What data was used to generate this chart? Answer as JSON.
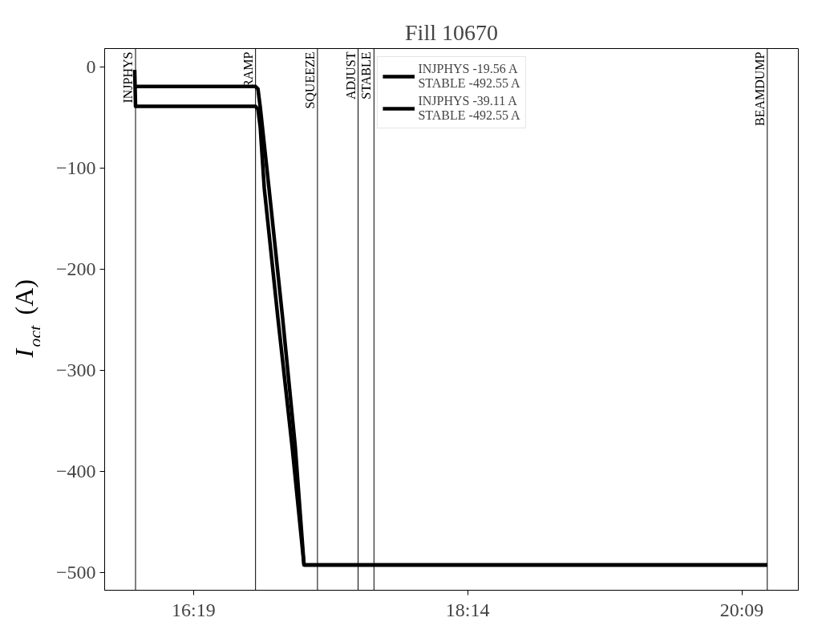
{
  "chart_data": {
    "type": "line",
    "title": "Fill 10670",
    "ylabel": "I$_{oct}$ (A)",
    "xlim": [
      15.695,
      20.545
    ],
    "ylim": [
      -517.6,
      18
    ],
    "xticks": [
      {
        "value": 16.3167,
        "label": "16:19"
      },
      {
        "value": 18.2333,
        "label": "18:14"
      },
      {
        "value": 20.15,
        "label": "20:09"
      }
    ],
    "yticks": [
      -500,
      -400,
      -300,
      -200,
      -100,
      0
    ],
    "series": [
      {
        "name": "INJPHYS -19.56 A\nSTABLE -492.55 A",
        "color": "#000000",
        "x": [
          15.913,
          16.75,
          16.767,
          16.783,
          16.844,
          16.939,
          17.028,
          17.089,
          20.328
        ],
        "values": [
          -19.56,
          -19.56,
          -22,
          -40,
          -120,
          -248,
          -376,
          -492.55,
          -492.55
        ]
      },
      {
        "name": "INJPHYS -39.11 A\nSTABLE -492.55 A",
        "color": "#000000",
        "x": [
          15.905,
          15.911,
          16.75,
          16.767,
          16.783,
          16.811,
          16.906,
          17.006,
          17.089,
          20.328
        ],
        "values": [
          -3,
          -39.11,
          -39.11,
          -42,
          -60,
          -120,
          -248,
          -376,
          -492.55,
          -492.55
        ]
      }
    ],
    "ref_lines": [
      {
        "axis": "x",
        "value": 15.911,
        "label": "INJPHYS",
        "color": "#000000"
      },
      {
        "axis": "x",
        "value": 16.75,
        "label": "RAMP",
        "color": "#000000"
      },
      {
        "axis": "x",
        "value": 17.183,
        "label": "SQUEEZE",
        "color": "#000000"
      },
      {
        "axis": "x",
        "value": 17.467,
        "label": "ADJUST",
        "color": "#000000"
      },
      {
        "axis": "x",
        "value": 17.578,
        "label": "STABLE",
        "color": "#000000"
      },
      {
        "axis": "x",
        "value": 20.328,
        "label": "BEAMDUMP",
        "color": "#000000"
      }
    ],
    "grid": false,
    "legend": "top",
    "line_style": "solid",
    "marker": "none"
  }
}
